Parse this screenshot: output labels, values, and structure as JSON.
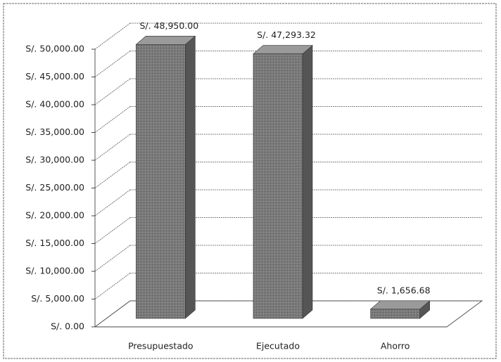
{
  "chart_data": {
    "type": "bar3d",
    "categories": [
      "Presupuestado",
      "Ejecutado",
      "Ahorro"
    ],
    "values": [
      48950,
      47293.32,
      1656.68
    ],
    "value_labels": [
      "S/. 48,950.00",
      "S/. 47,293.32",
      "S/. 1,656.68"
    ],
    "color": "#7a7a7a",
    "ylim": [
      0,
      50000
    ],
    "yticks": [
      {
        "value": 0,
        "label": "S/. 0.00"
      },
      {
        "value": 5000,
        "label": "S/. 5,000.00"
      },
      {
        "value": 10000,
        "label": "S/. 10,000.00"
      },
      {
        "value": 15000,
        "label": "S/. 15,000.00"
      },
      {
        "value": 20000,
        "label": "S/. 20,000.00"
      },
      {
        "value": 25000,
        "label": "S/. 25,000.00"
      },
      {
        "value": 30000,
        "label": "S/. 30,000.00"
      },
      {
        "value": 35000,
        "label": "S/. 35,000.00"
      },
      {
        "value": 40000,
        "label": "S/. 40,000.00"
      },
      {
        "value": 45000,
        "label": "S/. 45,000.00"
      },
      {
        "value": 50000,
        "label": "S/. 50,000.00"
      }
    ],
    "grid": true
  }
}
